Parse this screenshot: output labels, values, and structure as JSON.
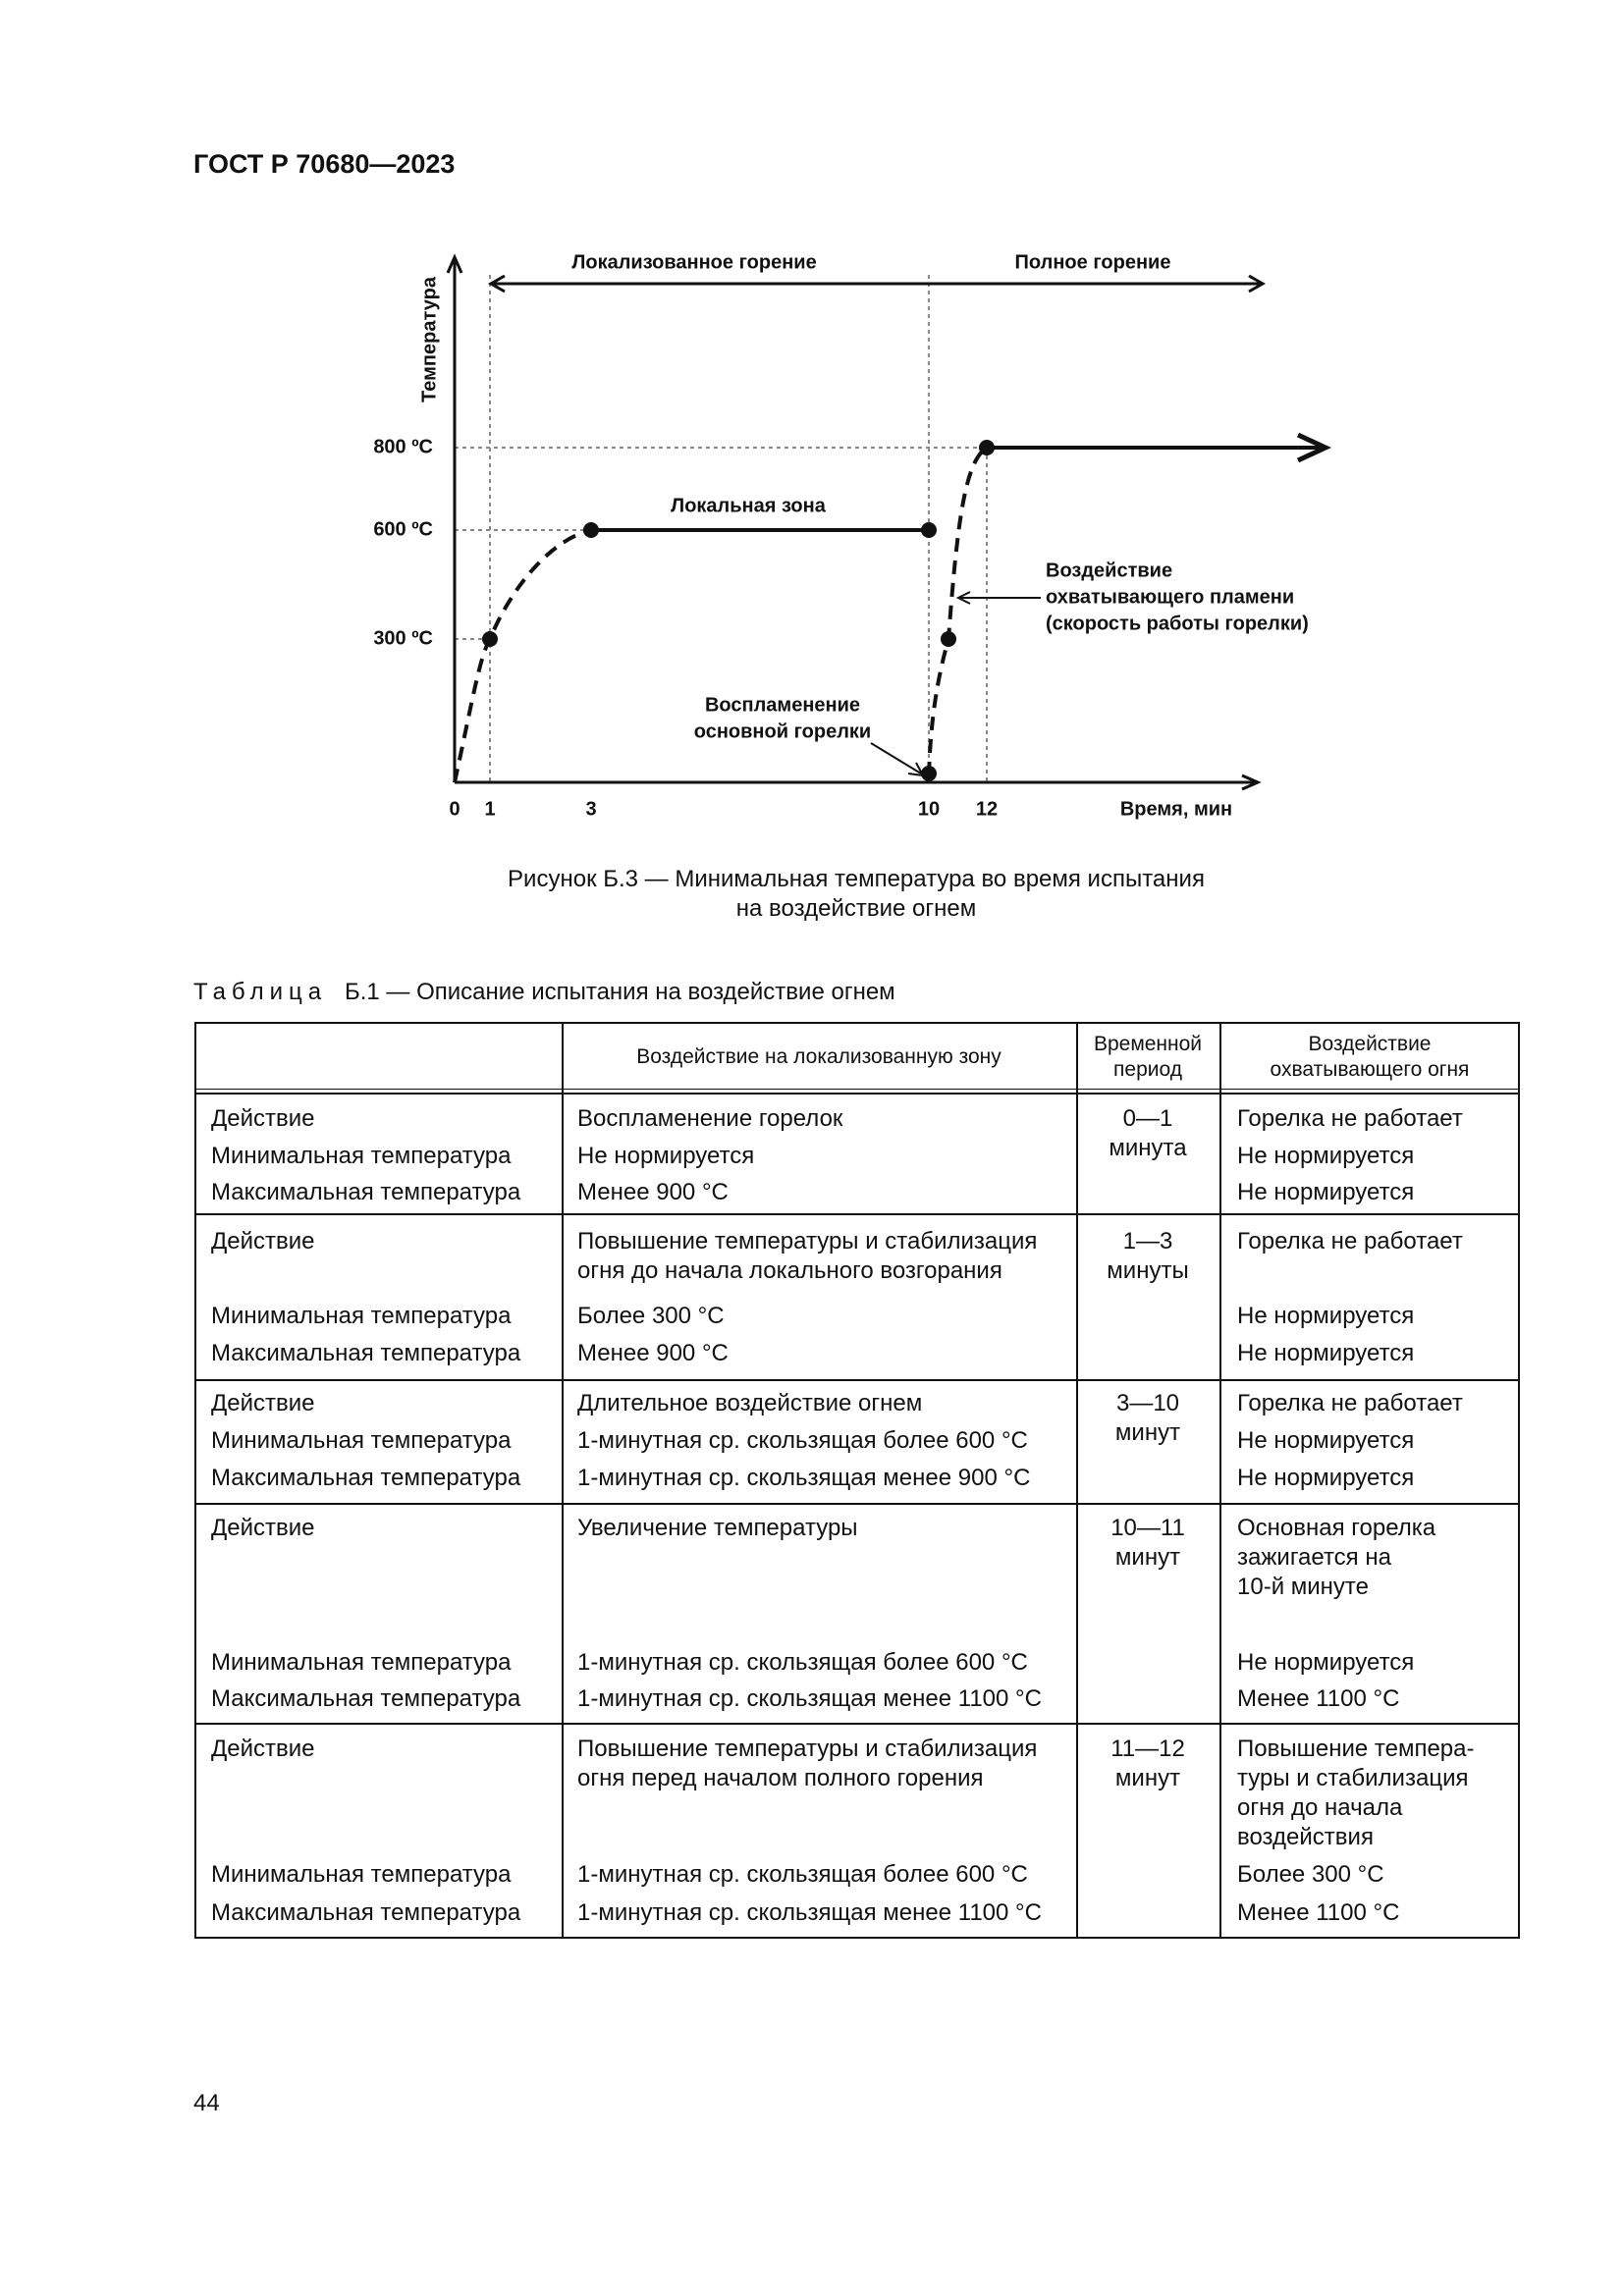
{
  "header": {
    "title": "ГОСТ Р 70680—2023"
  },
  "figure": {
    "y_axis_label": "Температура",
    "x_axis_label": "Время, мин",
    "x_ticks": [
      "0",
      "1",
      "3",
      "10",
      "12"
    ],
    "y_ticks": [
      "300 ºC",
      "600 ºC",
      "800 ºC"
    ],
    "phases": [
      "Локализованное горение",
      "Полное горение"
    ],
    "local_zone": "Локальная зона",
    "flame_note": [
      "Воздействие",
      "охватывающего пламени",
      "(скорость работы горелки)"
    ],
    "ignition_note": [
      "Воспламенение",
      "основной горелки"
    ],
    "caption": [
      "Рисунок Б.3 — Минимальная температура во время испытания",
      "на воздействие огнем"
    ]
  },
  "table": {
    "label": "Таблица",
    "title": "Б.1 — Описание испытания на воздействие огнем",
    "header": [
      [
        "Воздействие на локализованную зону"
      ],
      [
        "Временной",
        "период"
      ],
      [
        "Воздействие",
        "охватывающего огня"
      ]
    ],
    "groups": [
      {
        "period": [
          "0—1",
          "минута"
        ],
        "lines": [
          {
            "label": "Действие",
            "zone": [
              "Воспламенение горелок"
            ],
            "fire": [
              "Горелка не работает"
            ]
          },
          {
            "label": "Минимальная температура",
            "zone": [
              "Не нормируется"
            ],
            "fire": [
              "Не нормируется"
            ]
          },
          {
            "label": "Максимальная температура",
            "zone": [
              "Менее 900 °C"
            ],
            "fire": [
              "Не нормируется"
            ]
          }
        ]
      },
      {
        "period": [
          "1—3",
          "минуты"
        ],
        "lines": [
          {
            "label": "Действие",
            "zone": [
              "Повышение температуры и стабилизация",
              "огня до начала локального возгорания"
            ],
            "fire": [
              "Горелка не работает"
            ]
          },
          {
            "label": "Минимальная температура",
            "zone": [
              "Более 300 °C"
            ],
            "fire": [
              "Не нормируется"
            ]
          },
          {
            "label": "Максимальная температура",
            "zone": [
              "Менее 900 °C"
            ],
            "fire": [
              "Не нормируется"
            ]
          }
        ]
      },
      {
        "period": [
          "3—10",
          "минут"
        ],
        "lines": [
          {
            "label": "Действие",
            "zone": [
              "Длительное воздействие огнем"
            ],
            "fire": [
              "Горелка не работает"
            ]
          },
          {
            "label": "Минимальная температура",
            "zone": [
              "1-минутная ср. скользящая более 600 °C"
            ],
            "fire": [
              "Не нормируется"
            ]
          },
          {
            "label": "Максимальная температура",
            "zone": [
              "1-минутная ср. скользящая менее 900 °C"
            ],
            "fire": [
              "Не нормируется"
            ]
          }
        ]
      },
      {
        "period": [
          "10—11",
          "минут"
        ],
        "lines": [
          {
            "label": "Действие",
            "zone": [
              "Увеличение температуры"
            ],
            "fire": [
              "Основная горелка",
              "зажигается на",
              "10-й минуте"
            ]
          },
          {
            "label": "Минимальная температура",
            "zone": [
              "1-минутная ср. скользящая более 600 °C"
            ],
            "fire": [
              "Не нормируется"
            ]
          },
          {
            "label": "Максимальная температура",
            "zone": [
              "1-минутная ср. скользящая менее 1100 °C"
            ],
            "fire": [
              "Менее 1100 °C"
            ]
          }
        ]
      },
      {
        "period": [
          "11—12",
          "минут"
        ],
        "lines": [
          {
            "label": "Действие",
            "zone": [
              "Повышение температуры и стабилизация",
              "огня перед началом полного горения"
            ],
            "fire": [
              "Повышение темпера-",
              "туры и стабилизация",
              "огня до начала",
              "воздействия"
            ]
          },
          {
            "label": "Минимальная температура",
            "zone": [
              "1-минутная ср. скользящая более 600 °C"
            ],
            "fire": [
              "Более 300 °C"
            ]
          },
          {
            "label": "Максимальная температура",
            "zone": [
              "1-минутная ср. скользящая менее 1100 °C"
            ],
            "fire": [
              "Менее 1100 °C"
            ]
          }
        ]
      }
    ]
  },
  "page_number": "44"
}
